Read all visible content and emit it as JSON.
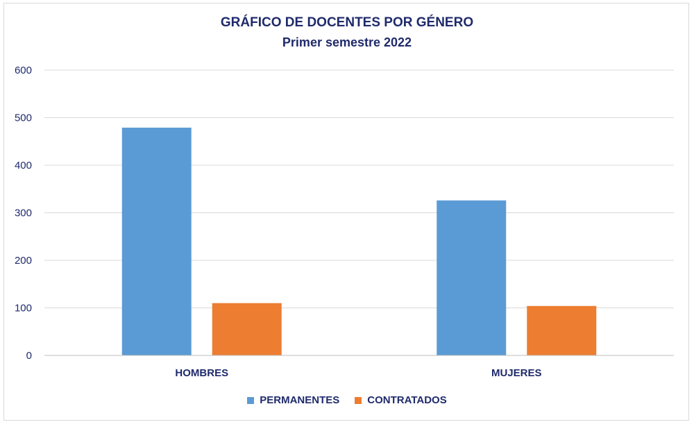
{
  "chart_data": {
    "type": "bar",
    "title": "GRÁFICO DE DOCENTES POR GÉNERO",
    "subtitle": "Primer semestre 2022",
    "categories": [
      "HOMBRES",
      "MUJERES"
    ],
    "series": [
      {
        "name": "PERMANENTES",
        "values": [
          479,
          326
        ],
        "color": "#5b9bd5"
      },
      {
        "name": "CONTRATADOS",
        "values": [
          110,
          104
        ],
        "color": "#ed7d31"
      }
    ],
    "y_ticks": [
      "0",
      "100",
      "200",
      "300",
      "400",
      "500",
      "600"
    ],
    "ylim": [
      0,
      600
    ],
    "xlabel": "",
    "ylabel": "",
    "grid": true,
    "legend_position": "bottom"
  }
}
